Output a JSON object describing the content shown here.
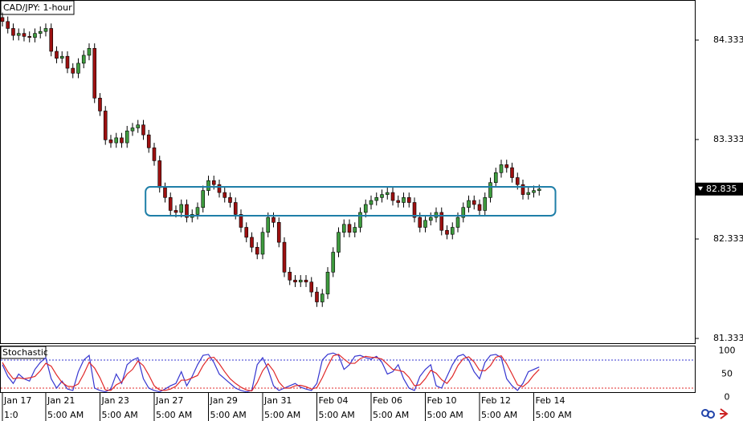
{
  "chart_data": [
    {
      "type": "candlestick",
      "title": "CAD/JPY: 1-hour",
      "series": [
        {
          "open": [
            84.56,
            84.52,
            84.45,
            84.38,
            84.4,
            84.37,
            84.36,
            84.4,
            84.42,
            84.45,
            84.22,
            84.15,
            84.17,
            84.05,
            84.0,
            84.1,
            84.18,
            84.25,
            83.75,
            83.62,
            83.33,
            83.3,
            83.35,
            83.3,
            83.42,
            83.45,
            83.48,
            83.38,
            83.25,
            83.12,
            82.85,
            82.75,
            82.62,
            82.6,
            82.68,
            82.55,
            82.58,
            82.65,
            82.82,
            82.92,
            82.88,
            82.8,
            82.75,
            82.7,
            82.58,
            82.45,
            82.35,
            82.25,
            82.18,
            82.4,
            82.55,
            82.5,
            82.3,
            82.0,
            81.92,
            81.9,
            81.92,
            81.9,
            81.8,
            81.7,
            81.78,
            82.0,
            82.2,
            82.4,
            82.48,
            82.4,
            82.45,
            82.6,
            82.68,
            82.72,
            82.75,
            82.78,
            82.8,
            82.72,
            82.7,
            82.75,
            82.7,
            82.55,
            82.45,
            82.52,
            82.55,
            82.6,
            82.42,
            82.38,
            82.45,
            82.55,
            82.65,
            82.72,
            82.68,
            82.62,
            82.75,
            82.9,
            83.0,
            83.08,
            83.05,
            82.95,
            82.88,
            82.78,
            82.8,
            82.82
          ],
          "high": [
            84.61,
            84.57,
            84.5,
            84.45,
            84.45,
            84.42,
            84.45,
            84.47,
            84.5,
            84.5,
            84.27,
            84.22,
            84.22,
            84.1,
            84.15,
            84.23,
            84.3,
            84.3,
            83.8,
            83.67,
            83.38,
            83.4,
            83.4,
            83.47,
            83.5,
            83.53,
            83.53,
            83.43,
            83.3,
            83.17,
            82.9,
            82.8,
            82.67,
            82.73,
            82.73,
            82.63,
            82.7,
            82.87,
            82.97,
            82.97,
            82.93,
            82.85,
            82.8,
            82.75,
            82.63,
            82.5,
            82.4,
            82.3,
            82.45,
            82.6,
            82.6,
            82.55,
            82.35,
            82.05,
            81.97,
            81.97,
            81.97,
            81.95,
            81.85,
            81.83,
            82.05,
            82.25,
            82.45,
            82.53,
            82.53,
            82.5,
            82.65,
            82.73,
            82.77,
            82.8,
            82.83,
            82.85,
            82.85,
            82.77,
            82.8,
            82.8,
            82.75,
            82.6,
            82.57,
            82.6,
            82.65,
            82.65,
            82.47,
            82.5,
            82.6,
            82.7,
            82.77,
            82.77,
            82.73,
            82.8,
            82.95,
            83.05,
            83.13,
            83.13,
            83.1,
            83.0,
            82.93,
            82.85,
            82.87,
            82.88
          ],
          "low": [
            84.47,
            84.4,
            84.33,
            84.33,
            84.32,
            84.31,
            84.31,
            84.35,
            84.37,
            84.17,
            84.1,
            84.1,
            84.0,
            83.95,
            83.95,
            84.05,
            84.13,
            83.7,
            83.57,
            83.28,
            83.25,
            83.25,
            83.25,
            83.25,
            83.37,
            83.4,
            83.33,
            83.2,
            83.07,
            82.8,
            82.7,
            82.57,
            82.55,
            82.55,
            82.5,
            82.5,
            82.53,
            82.6,
            82.77,
            82.83,
            82.75,
            82.7,
            82.65,
            82.53,
            82.4,
            82.3,
            82.2,
            82.13,
            82.13,
            82.35,
            82.45,
            82.25,
            81.95,
            81.87,
            81.85,
            81.85,
            81.85,
            81.75,
            81.65,
            81.65,
            81.73,
            81.95,
            82.15,
            82.35,
            82.35,
            82.35,
            82.4,
            82.55,
            82.63,
            82.67,
            82.7,
            82.73,
            82.67,
            82.65,
            82.65,
            82.65,
            82.5,
            82.4,
            82.4,
            82.47,
            82.5,
            82.37,
            82.33,
            82.33,
            82.4,
            82.5,
            82.6,
            82.63,
            82.57,
            82.57,
            82.7,
            82.85,
            82.95,
            83.0,
            82.9,
            82.83,
            82.73,
            82.73,
            82.75,
            82.77
          ],
          "close": [
            84.52,
            84.45,
            84.38,
            84.4,
            84.37,
            84.36,
            84.4,
            84.42,
            84.45,
            84.22,
            84.15,
            84.17,
            84.05,
            84.0,
            84.1,
            84.18,
            84.25,
            83.75,
            83.62,
            83.33,
            83.3,
            83.35,
            83.3,
            83.42,
            83.45,
            83.48,
            83.38,
            83.25,
            83.12,
            82.85,
            82.75,
            82.62,
            82.6,
            82.68,
            82.55,
            82.58,
            82.65,
            82.82,
            82.92,
            82.88,
            82.8,
            82.75,
            82.7,
            82.58,
            82.45,
            82.35,
            82.25,
            82.18,
            82.4,
            82.55,
            82.5,
            82.3,
            82.0,
            81.92,
            81.9,
            81.92,
            81.9,
            81.8,
            81.7,
            81.78,
            82.0,
            82.2,
            82.4,
            82.48,
            82.4,
            82.45,
            82.6,
            82.68,
            82.72,
            82.75,
            82.78,
            82.8,
            82.72,
            82.7,
            82.75,
            82.7,
            82.55,
            82.45,
            82.52,
            82.55,
            82.6,
            82.42,
            82.38,
            82.45,
            82.55,
            82.65,
            82.72,
            82.68,
            82.62,
            82.75,
            82.9,
            83.0,
            83.08,
            83.05,
            82.95,
            82.88,
            82.78,
            82.8,
            82.82,
            82.835
          ]
        }
      ],
      "up_color": "#3e9b3e",
      "down_color": "#9c1010",
      "ylim": [
        81.285,
        84.736
      ],
      "yticks": [
        81.333,
        82.333,
        83.333,
        84.333
      ],
      "xlim": [
        -0.44,
        127.7
      ],
      "xticks": [
        {
          "value": 0,
          "label": "Jan 17",
          "time_label": "1:0"
        },
        {
          "value": 8,
          "label": "Jan 21",
          "time_label": "5:00 AM"
        },
        {
          "value": 18,
          "label": "Jan 23",
          "time_label": "5:00 AM"
        },
        {
          "value": 28,
          "label": "Jan 27",
          "time_label": "5:00 AM"
        },
        {
          "value": 38,
          "label": "Jan 29",
          "time_label": "5:00 AM"
        },
        {
          "value": 48,
          "label": "Jan 31",
          "time_label": "5:00 AM"
        },
        {
          "value": 58,
          "label": "Feb 04",
          "time_label": "5:00 AM"
        },
        {
          "value": 68,
          "label": "Feb 06",
          "time_label": "5:00 AM"
        },
        {
          "value": 78,
          "label": "Feb 10",
          "time_label": "5:00 AM"
        },
        {
          "value": 88,
          "label": "Feb 12",
          "time_label": "5:00 AM"
        },
        {
          "value": 98,
          "label": "Feb 14",
          "time_label": "5:00 AM"
        }
      ],
      "current_price": 82.835,
      "highlight": {
        "x": [
          26.4,
          102
        ],
        "y": [
          82.567,
          82.857
        ],
        "color": "#1f7fa8"
      }
    },
    {
      "type": "line",
      "title": "Stochastic",
      "series": [
        {
          "color": "#3535d0",
          "values": [
            70,
            45,
            30,
            50,
            40,
            35,
            60,
            75,
            85,
            40,
            20,
            35,
            18,
            15,
            55,
            80,
            90,
            20,
            15,
            12,
            18,
            50,
            30,
            70,
            80,
            85,
            40,
            20,
            15,
            12,
            18,
            25,
            30,
            55,
            25,
            45,
            70,
            90,
            92,
            75,
            50,
            40,
            30,
            20,
            15,
            12,
            15,
            70,
            85,
            60,
            25,
            15,
            20,
            25,
            30,
            22,
            18,
            15,
            30,
            80,
            92,
            95,
            90,
            60,
            70,
            88,
            90,
            85,
            82,
            88,
            75,
            50,
            55,
            70,
            40,
            20,
            15,
            45,
            60,
            70,
            25,
            20,
            45,
            70,
            88,
            92,
            80,
            55,
            40,
            75,
            90,
            92,
            85,
            40,
            25,
            15,
            30,
            55,
            60,
            65
          ]
        },
        {
          "color": "#e02828",
          "values": [
            75,
            55,
            40,
            42,
            40,
            42,
            45,
            57,
            73,
            67,
            48,
            32,
            24,
            23,
            29,
            50,
            75,
            63,
            42,
            16,
            15,
            27,
            33,
            50,
            60,
            78,
            68,
            48,
            25,
            16,
            15,
            18,
            24,
            37,
            37,
            42,
            47,
            68,
            84,
            86,
            72,
            55,
            40,
            30,
            22,
            16,
            14,
            32,
            57,
            72,
            57,
            33,
            20,
            20,
            25,
            26,
            23,
            18,
            21,
            42,
            67,
            89,
            92,
            82,
            73,
            73,
            83,
            88,
            86,
            85,
            82,
            71,
            60,
            58,
            55,
            43,
            25,
            27,
            40,
            58,
            52,
            38,
            30,
            45,
            68,
            83,
            87,
            76,
            58,
            57,
            68,
            86,
            89,
            72,
            50,
            27,
            23,
            33,
            48,
            60
          ]
        }
      ],
      "ylim": [
        9.7,
        110.8
      ],
      "yticks": [
        0,
        50,
        100
      ],
      "levels": [
        {
          "value": 80,
          "color": "#3535d0"
        },
        {
          "value": 20,
          "color": "#e02828"
        }
      ]
    }
  ]
}
